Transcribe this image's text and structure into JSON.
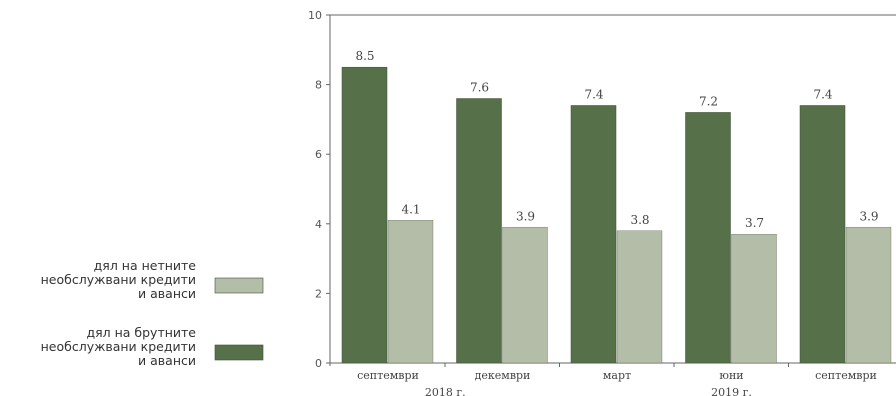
{
  "chart_data": {
    "type": "bar",
    "categories": [
      "септември",
      "декември",
      "март",
      "юни",
      "септември"
    ],
    "years": [
      {
        "label": "2018 г.",
        "start": 0,
        "end": 1
      },
      {
        "label": "2019 г.",
        "start": 2,
        "end": 4
      }
    ],
    "series": [
      {
        "name": "дял на брутните необслужвани кредити и аванси",
        "color": "#56704a",
        "values": [
          8.5,
          7.6,
          7.4,
          7.2,
          7.4
        ]
      },
      {
        "name": "дял на нетните необслужвани кредити и аванси",
        "color": "#b4bda7",
        "values": [
          4.1,
          3.9,
          3.8,
          3.7,
          3.9
        ]
      }
    ],
    "ylim": [
      0,
      10
    ],
    "yticks": [
      0,
      2,
      4,
      6,
      8,
      10
    ],
    "grid": false,
    "legend_position": "left"
  },
  "legend": [
    {
      "lines": [
        "дял на нетните",
        "необслужвани кредити",
        "и аванси"
      ],
      "color": "#b4bda7"
    },
    {
      "lines": [
        "дял на брутните",
        "необслужвани кредити",
        "и аванси"
      ],
      "color": "#56704a"
    }
  ]
}
